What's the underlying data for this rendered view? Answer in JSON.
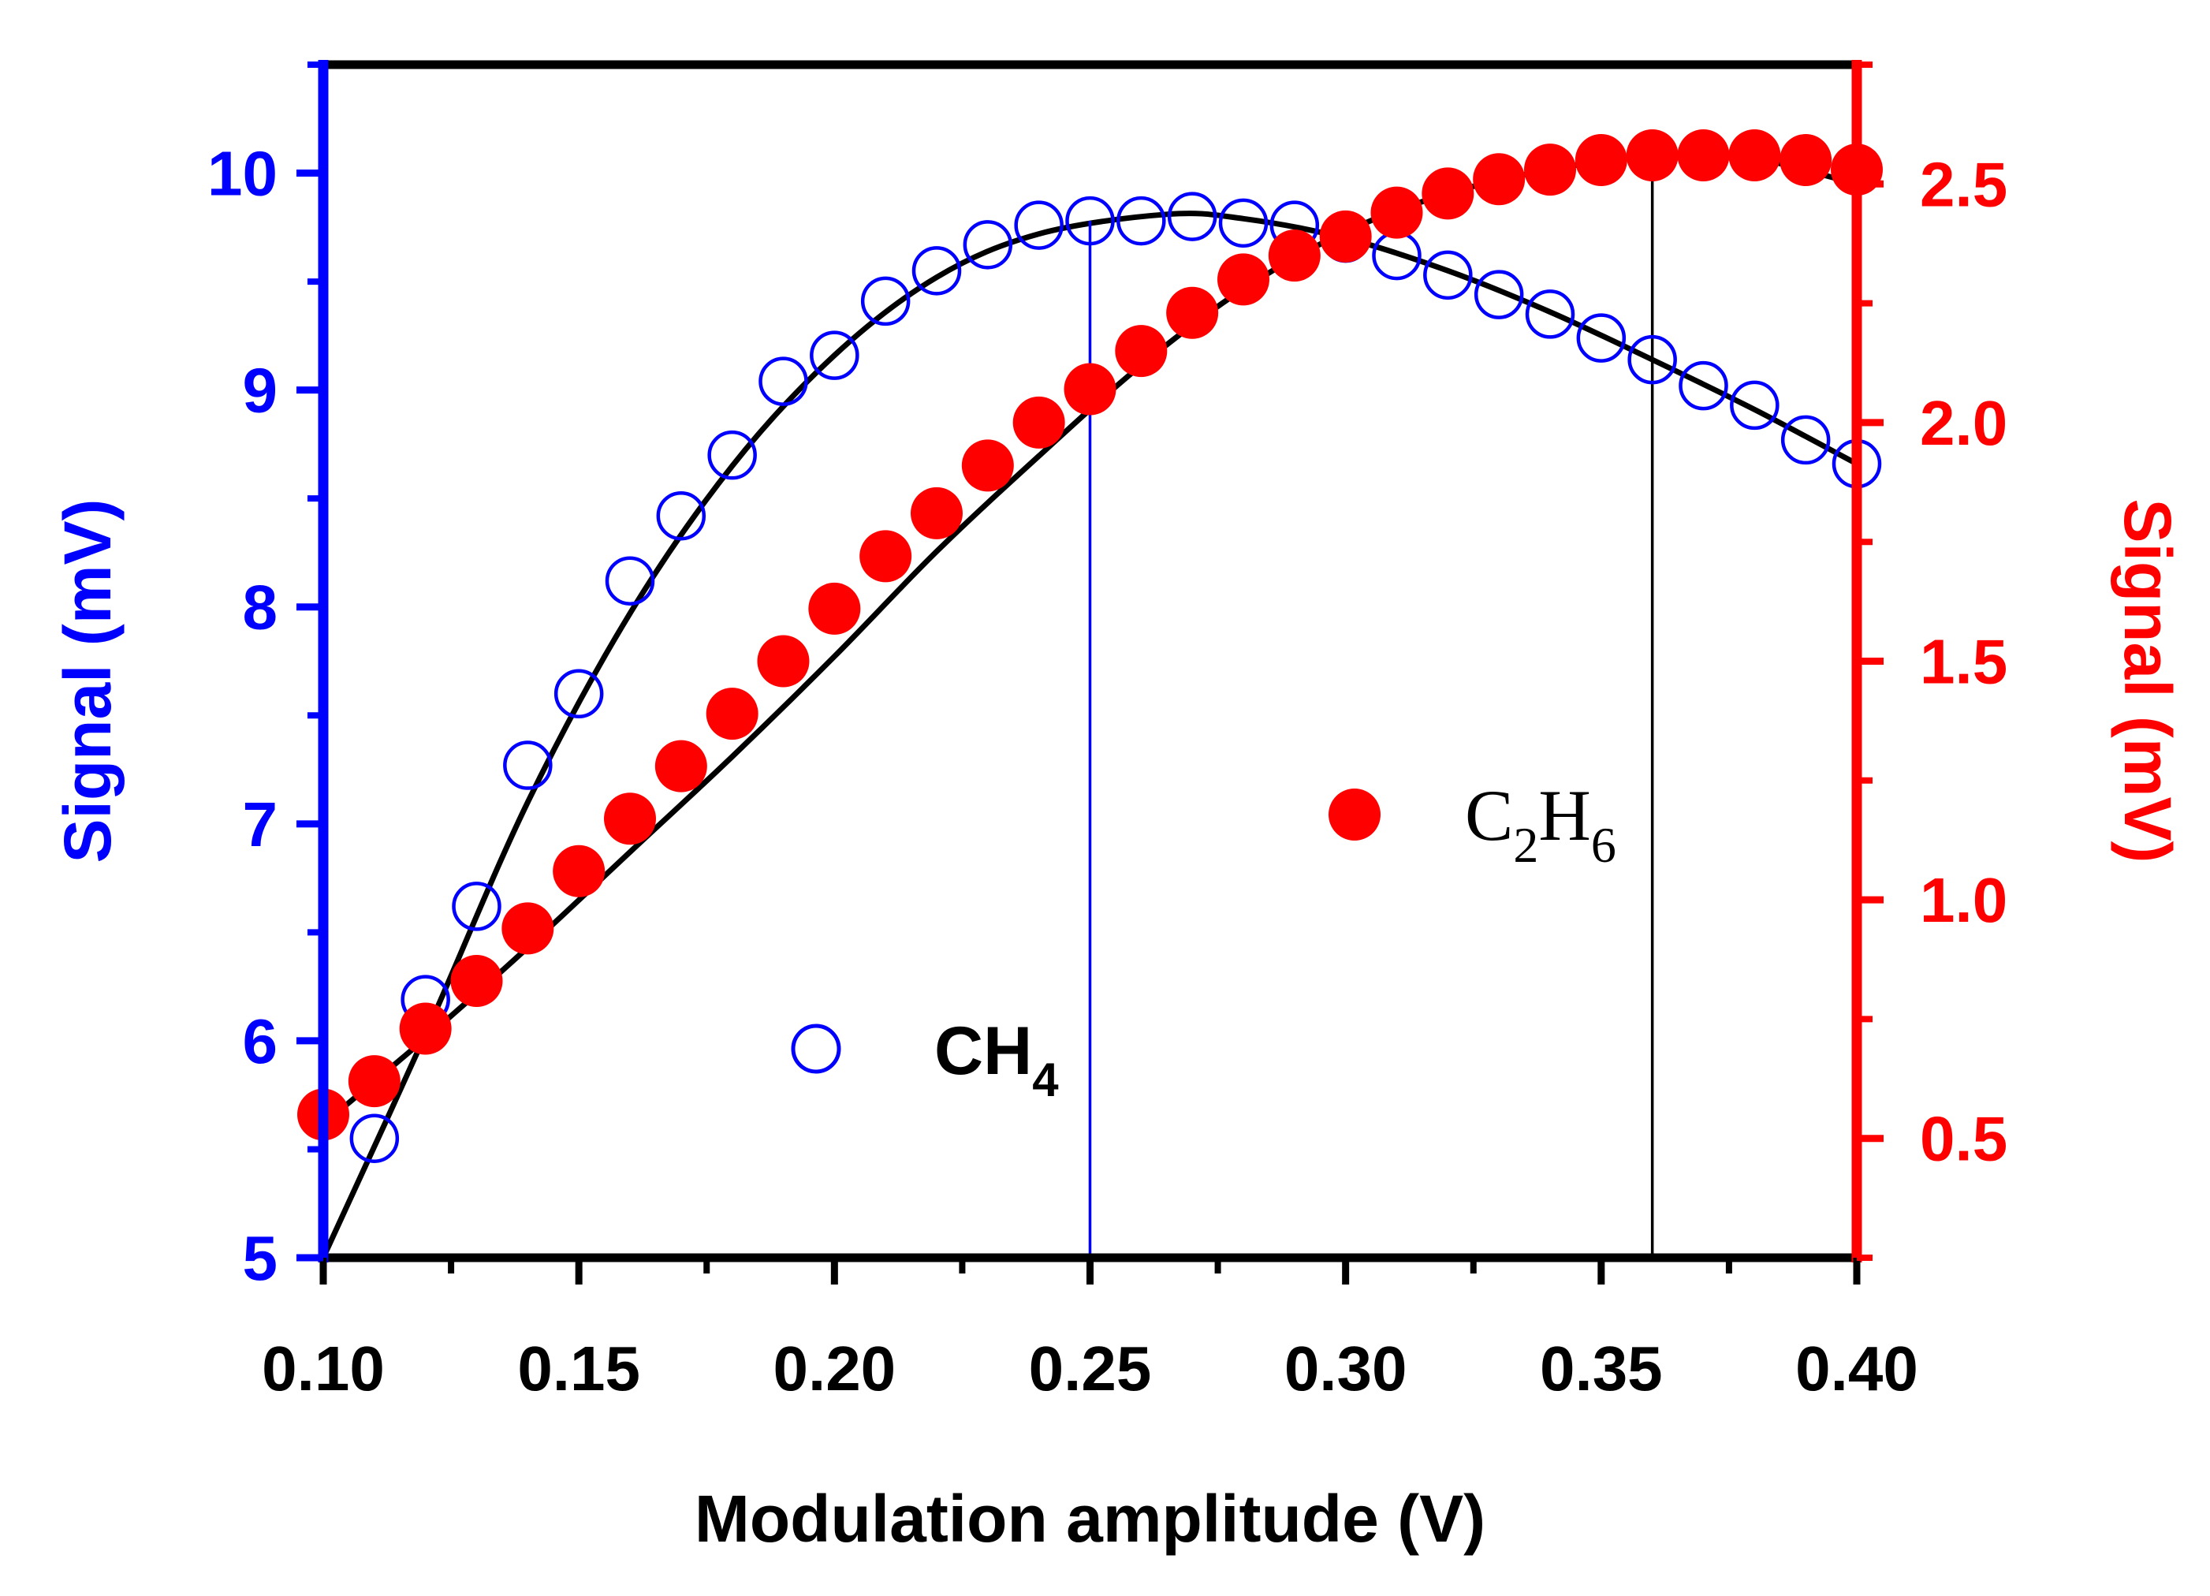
{
  "chart_data": {
    "type": "scatter",
    "title": "",
    "xlabel": "Modulation amplitude (V)",
    "ylabel_left": "Signal (mV)",
    "ylabel_right": "Signal (mV)",
    "xlim": [
      0.1,
      0.4
    ],
    "ylim_left": [
      5,
      10.5
    ],
    "ylim_right": [
      0.25,
      2.75
    ],
    "x_ticks": [
      0.1,
      0.15,
      0.2,
      0.25,
      0.3,
      0.35,
      0.4
    ],
    "x_tick_labels": [
      "0.10",
      "0.15",
      "0.20",
      "0.25",
      "0.30",
      "0.35",
      "0.40"
    ],
    "y_left_ticks": [
      5,
      6,
      7,
      8,
      9,
      10
    ],
    "y_left_tick_labels": [
      "5",
      "6",
      "7",
      "8",
      "9",
      "10"
    ],
    "y_right_ticks": [
      0.5,
      1.0,
      1.5,
      2.0,
      2.5
    ],
    "y_right_tick_labels": [
      "0.5",
      "1.0",
      "1.5",
      "2.0",
      "2.5"
    ],
    "grid": false,
    "colors": {
      "left_axis": "#0000ff",
      "right_axis": "#ff0000",
      "ch4": "#0000ff",
      "c2h6": "#ff0000",
      "fit": "#000000"
    },
    "series": [
      {
        "name": "CH4",
        "axis": "left",
        "marker": "open-circle",
        "x": [
          0.11,
          0.12,
          0.13,
          0.14,
          0.15,
          0.16,
          0.17,
          0.18,
          0.19,
          0.2,
          0.21,
          0.22,
          0.23,
          0.24,
          0.25,
          0.26,
          0.27,
          0.28,
          0.29,
          0.3,
          0.31,
          0.32,
          0.33,
          0.34,
          0.35,
          0.36,
          0.37,
          0.38,
          0.39,
          0.4
        ],
        "y": [
          5.55,
          6.19,
          6.62,
          7.27,
          7.6,
          8.12,
          8.42,
          8.7,
          9.04,
          9.16,
          9.41,
          9.55,
          9.67,
          9.76,
          9.78,
          9.78,
          9.8,
          9.77,
          9.76,
          9.7,
          9.62,
          9.53,
          9.44,
          9.35,
          9.24,
          9.14,
          9.02,
          8.93,
          8.77,
          8.66
        ]
      },
      {
        "name": "C2H6",
        "axis": "right",
        "marker": "filled-circle",
        "x": [
          0.1,
          0.11,
          0.12,
          0.13,
          0.14,
          0.15,
          0.16,
          0.17,
          0.18,
          0.19,
          0.2,
          0.21,
          0.22,
          0.23,
          0.24,
          0.25,
          0.26,
          0.27,
          0.28,
          0.29,
          0.3,
          0.31,
          0.32,
          0.33,
          0.34,
          0.35,
          0.36,
          0.37,
          0.38,
          0.39,
          0.4
        ],
        "y": [
          0.55,
          0.62,
          0.73,
          0.83,
          0.94,
          1.06,
          1.17,
          1.28,
          1.39,
          1.5,
          1.61,
          1.72,
          1.81,
          1.91,
          2.0,
          2.07,
          2.15,
          2.23,
          2.3,
          2.35,
          2.39,
          2.44,
          2.48,
          2.51,
          2.53,
          2.55,
          2.56,
          2.56,
          2.56,
          2.55,
          2.53
        ]
      }
    ],
    "fit_curves": [
      {
        "name": "CH4 fit",
        "axis": "left",
        "x": [
          0.1,
          0.12,
          0.14,
          0.16,
          0.18,
          0.2,
          0.22,
          0.24,
          0.265,
          0.28,
          0.3,
          0.32,
          0.34,
          0.36,
          0.38,
          0.4
        ],
        "y": [
          5.0,
          6.03,
          7.1,
          7.97,
          8.65,
          9.16,
          9.52,
          9.72,
          9.81,
          9.79,
          9.7,
          9.55,
          9.36,
          9.14,
          8.91,
          8.66
        ]
      },
      {
        "name": "C2H6 fit",
        "axis": "right",
        "x": [
          0.1,
          0.12,
          0.14,
          0.16,
          0.18,
          0.2,
          0.22,
          0.24,
          0.26,
          0.28,
          0.3,
          0.32,
          0.34,
          0.36,
          0.37,
          0.38,
          0.4
        ],
        "y": [
          0.53,
          0.71,
          0.9,
          1.1,
          1.3,
          1.51,
          1.73,
          1.93,
          2.12,
          2.28,
          2.4,
          2.48,
          2.53,
          2.56,
          2.56,
          2.555,
          2.5
        ]
      }
    ],
    "vertical_lines": [
      {
        "x": 0.25,
        "color": "#0000ff",
        "from_axis": "left",
        "to_value": 9.78
      },
      {
        "x": 0.36,
        "color": "#000000",
        "from_axis": "right",
        "to_value": 2.56
      }
    ],
    "legend": [
      {
        "series": "CH4",
        "position": "bottom-center",
        "label_main": "CH",
        "label_sub": "4"
      },
      {
        "series": "C2H6",
        "position": "center-right",
        "label_parts": [
          "C",
          "2",
          "H",
          "6"
        ]
      }
    ]
  }
}
